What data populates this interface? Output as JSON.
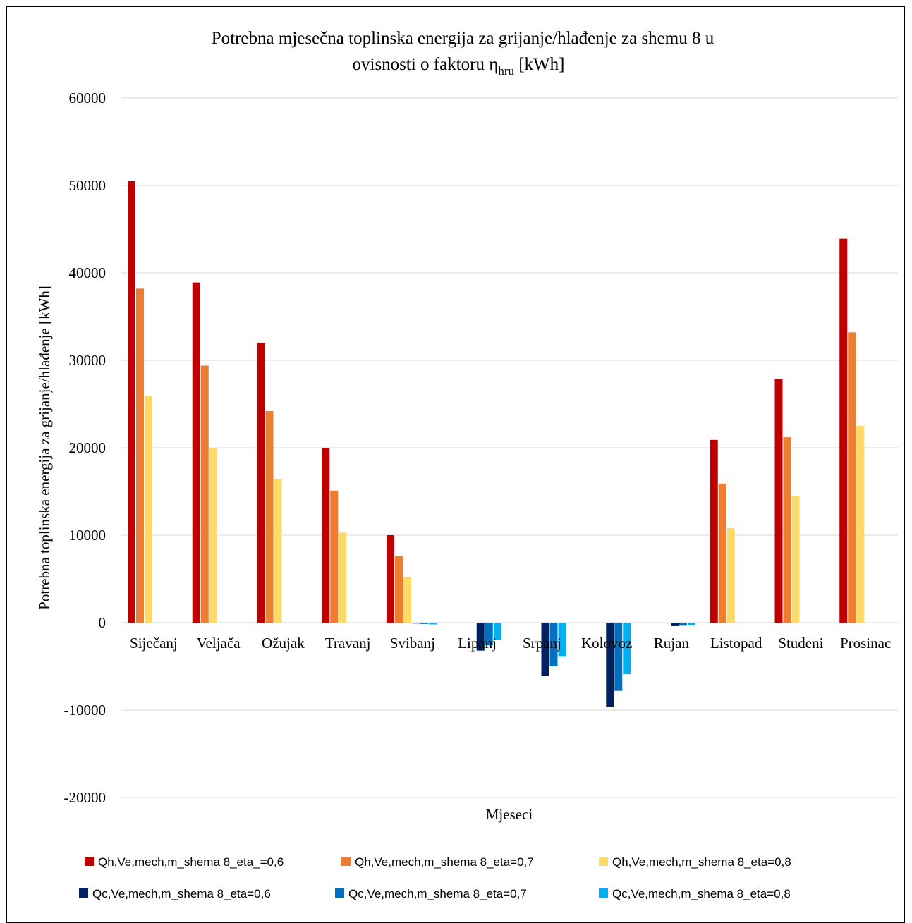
{
  "chart_data": {
    "type": "bar",
    "title_line1": "Potrebna mjesečna toplinska energija za grijanje/hlađenje za shemu 8 u",
    "title_line2_prefix": "ovisnosti o faktoru  η",
    "title_line2_sub": "hru",
    "title_line2_suffix": " [kWh]",
    "xlabel": "Mjeseci",
    "ylabel": "Potrebna toplinska energija za grijanje/hlađenje [kWh]",
    "ylim": [
      -20000,
      60000
    ],
    "yticks": [
      60000,
      50000,
      40000,
      30000,
      20000,
      10000,
      0,
      -10000,
      -20000
    ],
    "grid": true,
    "legend_position": "bottom",
    "categories": [
      "Siječanj",
      "Veljača",
      "Ožujak",
      "Travanj",
      "Svibanj",
      "Lipanj",
      "Srpanj",
      "Kolovoz",
      "Rujan",
      "Listopad",
      "Studeni",
      "Prosinac"
    ],
    "series": [
      {
        "name": "Qh,Ve,mech,m_shema 8_eta_=0,6",
        "color": "#c00000",
        "values": [
          50500,
          38900,
          32000,
          20000,
          10000,
          0,
          0,
          0,
          0,
          20900,
          27900,
          43900
        ]
      },
      {
        "name": "Qh,Ve,mech,m_shema 8_eta=0,7",
        "color": "#ed7d31",
        "values": [
          38200,
          29400,
          24200,
          15100,
          7600,
          0,
          0,
          0,
          0,
          15900,
          21200,
          33200
        ]
      },
      {
        "name": "Qh,Ve,mech,m_shema 8_eta=0,8",
        "color": "#ffd966",
        "values": [
          25900,
          20000,
          16400,
          10300,
          5200,
          0,
          0,
          0,
          0,
          10800,
          14500,
          22500
        ]
      },
      {
        "name": "Qc,Ve,mech,m_shema 8_eta=0,6",
        "color": "#002060",
        "values": [
          0,
          0,
          0,
          0,
          -100,
          -3200,
          -6100,
          -9600,
          -400,
          0,
          0,
          0
        ]
      },
      {
        "name": "Qc,Ve,mech,m_shema 8_eta=0,7",
        "color": "#0070c0",
        "values": [
          0,
          0,
          0,
          0,
          -150,
          -2600,
          -5000,
          -7800,
          -350,
          0,
          0,
          0
        ]
      },
      {
        "name": "Qc,Ve,mech,m_shema 8_eta=0,8",
        "color": "#00b0f0",
        "values": [
          0,
          0,
          0,
          0,
          -200,
          -2000,
          -3900,
          -5900,
          -300,
          0,
          0,
          0
        ]
      }
    ]
  }
}
